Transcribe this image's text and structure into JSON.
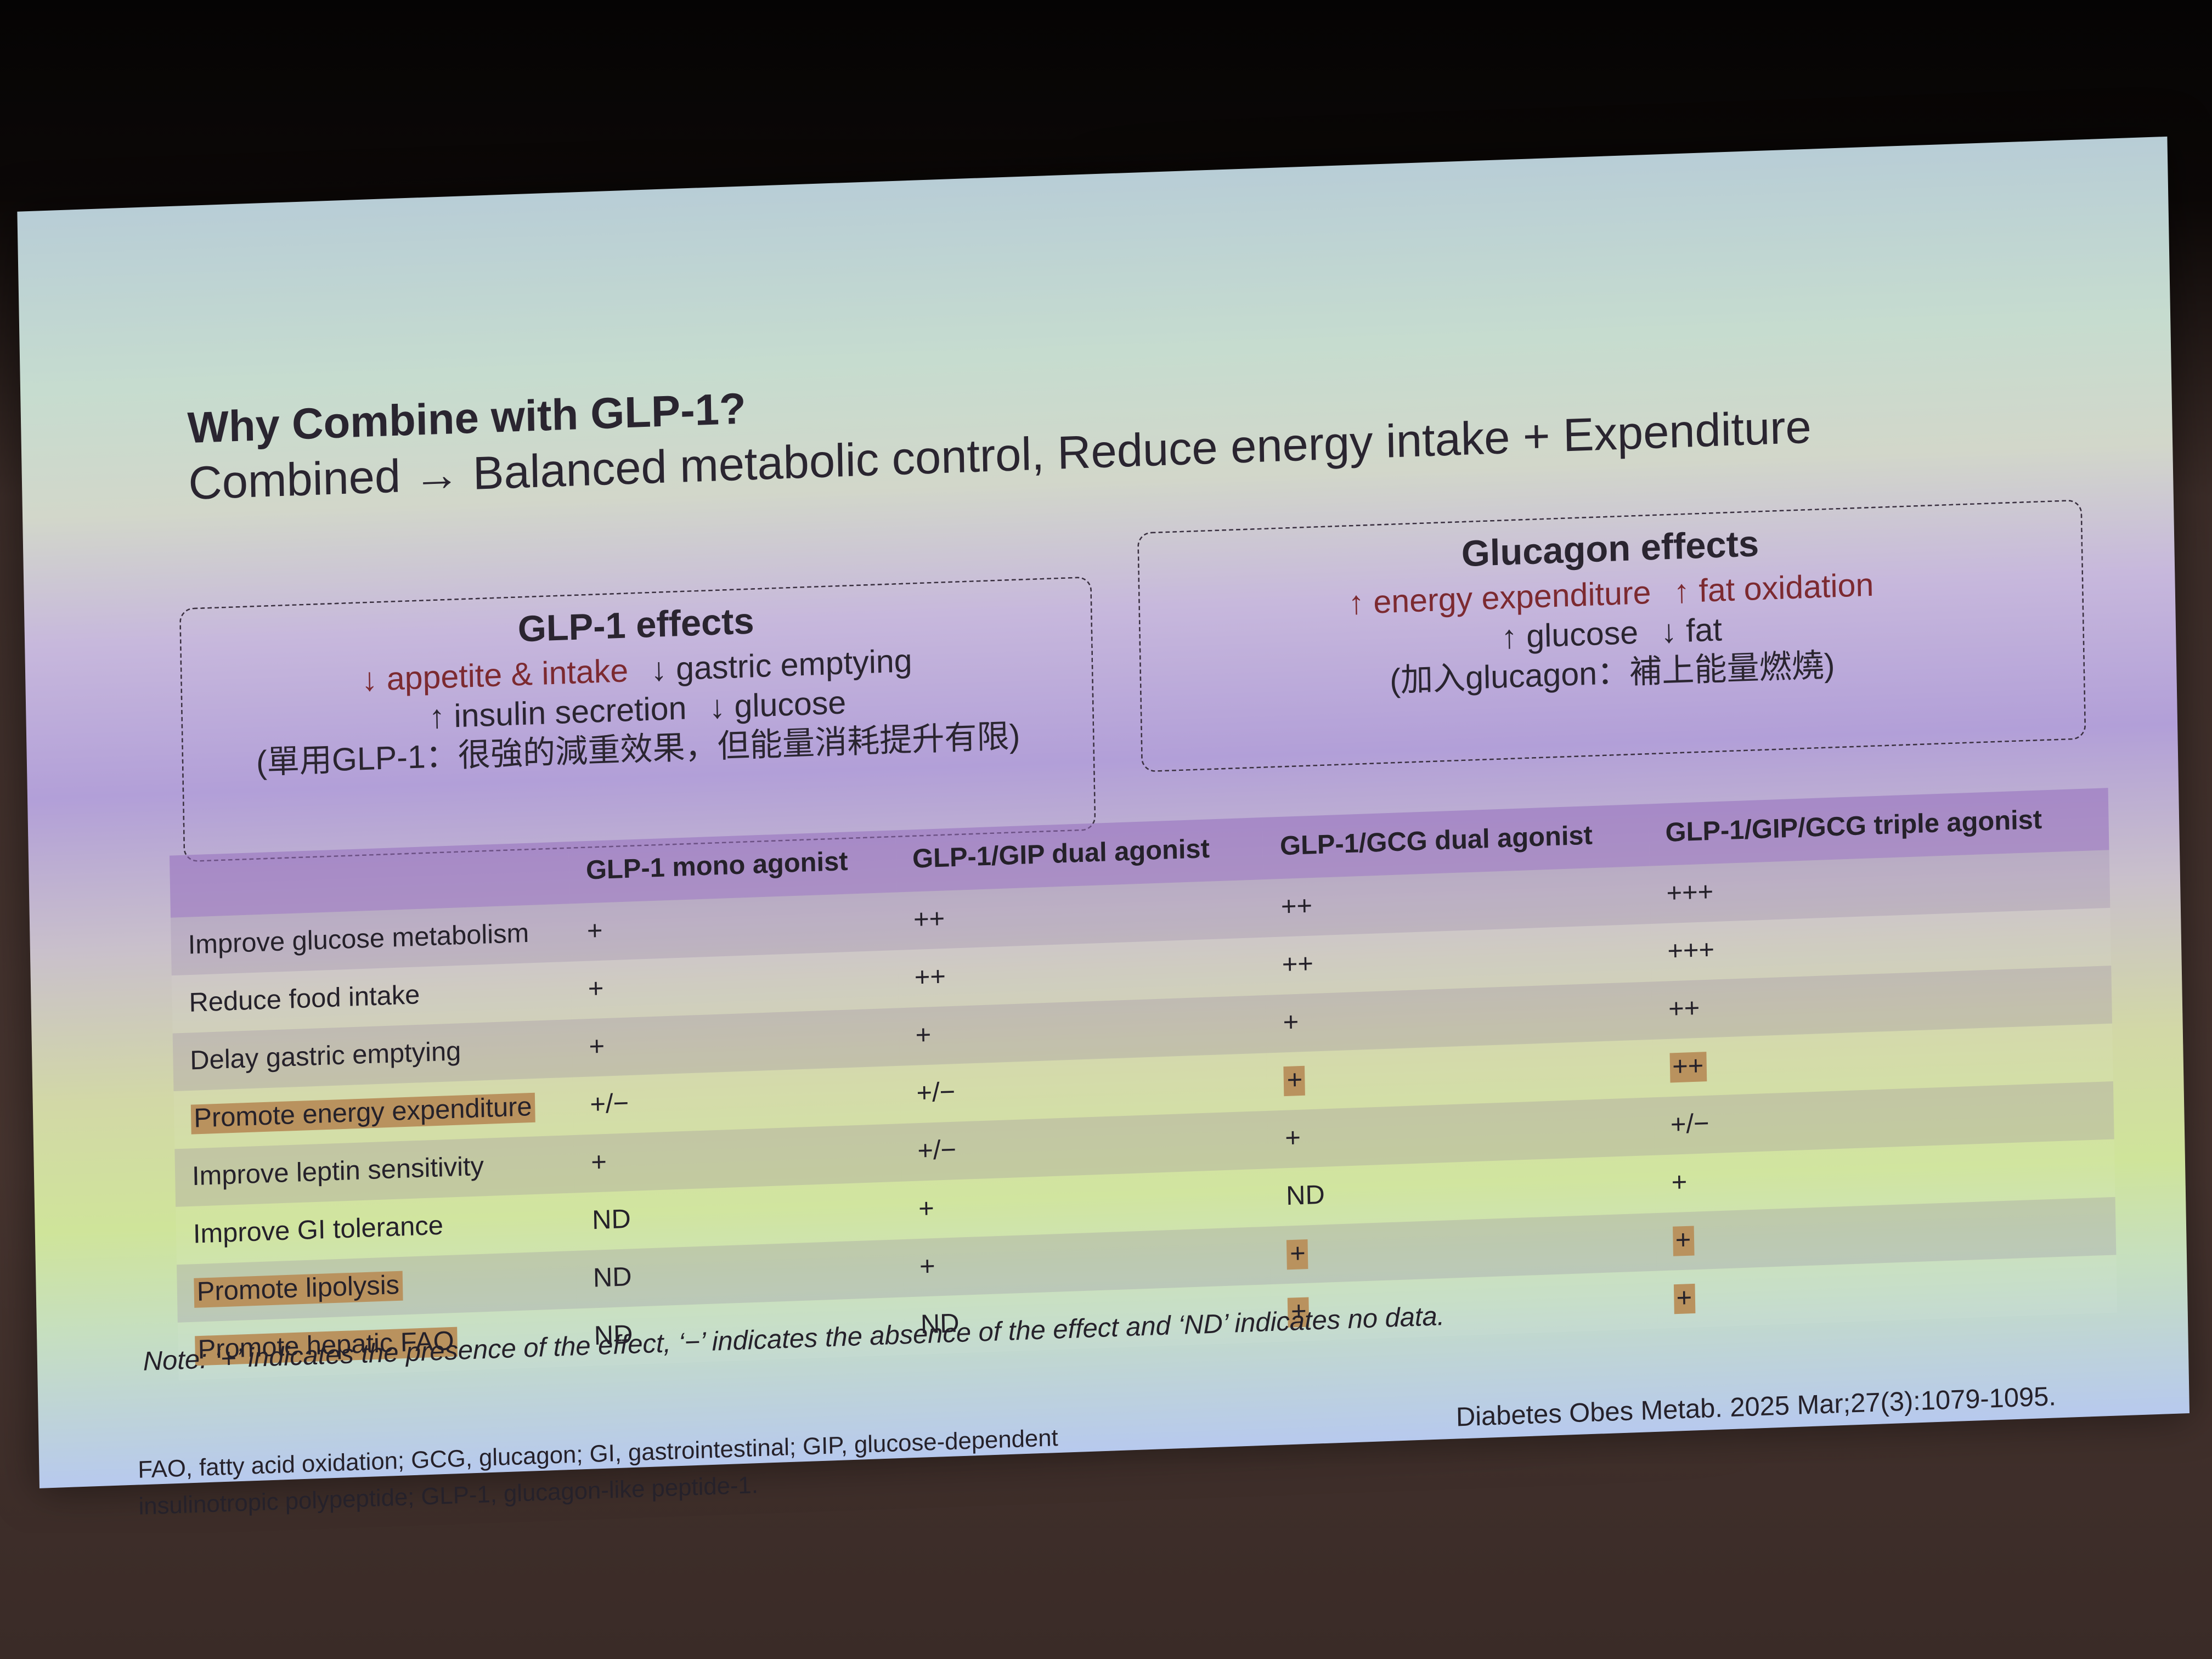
{
  "header": {
    "title": "Why Combine with GLP-1?",
    "subtitle": "Combined → Balanced metabolic control, Reduce energy intake + Expenditure"
  },
  "glp1_box": {
    "title": "GLP-1 effects",
    "lines": [
      [
        "↓ appetite & intake",
        "↓ gastric emptying"
      ],
      [
        "↑ insulin secretion",
        "↓ glucose"
      ],
      [
        "(單用GLP-1：很強的減重效果，但能量消耗提升有限)"
      ]
    ]
  },
  "glucagon_box": {
    "title": "Glucagon effects",
    "lines": [
      [
        "↑ energy expenditure",
        "↑ fat oxidation"
      ],
      [
        "↑ glucose",
        "↓ fat"
      ],
      [
        "(加入glucagon：補上能量燃燒)"
      ]
    ]
  },
  "table": {
    "columns": [
      "GLP-1 mono agonist",
      "GLP-1/GIP dual agonist",
      "GLP-1/GCG dual agonist",
      "GLP-1/GIP/GCG triple agonist"
    ],
    "rows": [
      {
        "label": "Improve glucose metabolism",
        "cells": [
          "+",
          "++",
          "++",
          "+++"
        ]
      },
      {
        "label": "Reduce food intake",
        "cells": [
          "+",
          "++",
          "++",
          "+++"
        ]
      },
      {
        "label": "Delay gastric emptying",
        "cells": [
          "+",
          "+",
          "+",
          "++"
        ]
      },
      {
        "label": "Promote energy expenditure",
        "cells": [
          "+/−",
          "+/−",
          "+",
          "++"
        ]
      },
      {
        "label": "Improve leptin sensitivity",
        "cells": [
          "+",
          "+/−",
          "+",
          "+/−"
        ]
      },
      {
        "label": "Improve GI tolerance",
        "cells": [
          "ND",
          "+",
          "ND",
          "+"
        ]
      },
      {
        "label": "Promote lipolysis",
        "cells": [
          "ND",
          "+",
          "+",
          "+"
        ]
      },
      {
        "label": "Promote hepatic FAO",
        "cells": [
          "ND",
          "ND",
          "+",
          "+"
        ]
      }
    ]
  },
  "note": "Note: ‘+’ indicates the presence of the effect, ‘−’ indicates the absence of the effect and ‘ND’ indicates no data.",
  "abbreviations": [
    "FAO, fatty acid oxidation; GCG, glucagon; GI, gastrointestinal; GIP, glucose-dependent",
    "insulinotropic polypeptide; GLP-1, glucagon-like peptide-1."
  ],
  "citation": "Diabetes Obes Metab. 2025 Mar;27(3):1079-1095."
}
